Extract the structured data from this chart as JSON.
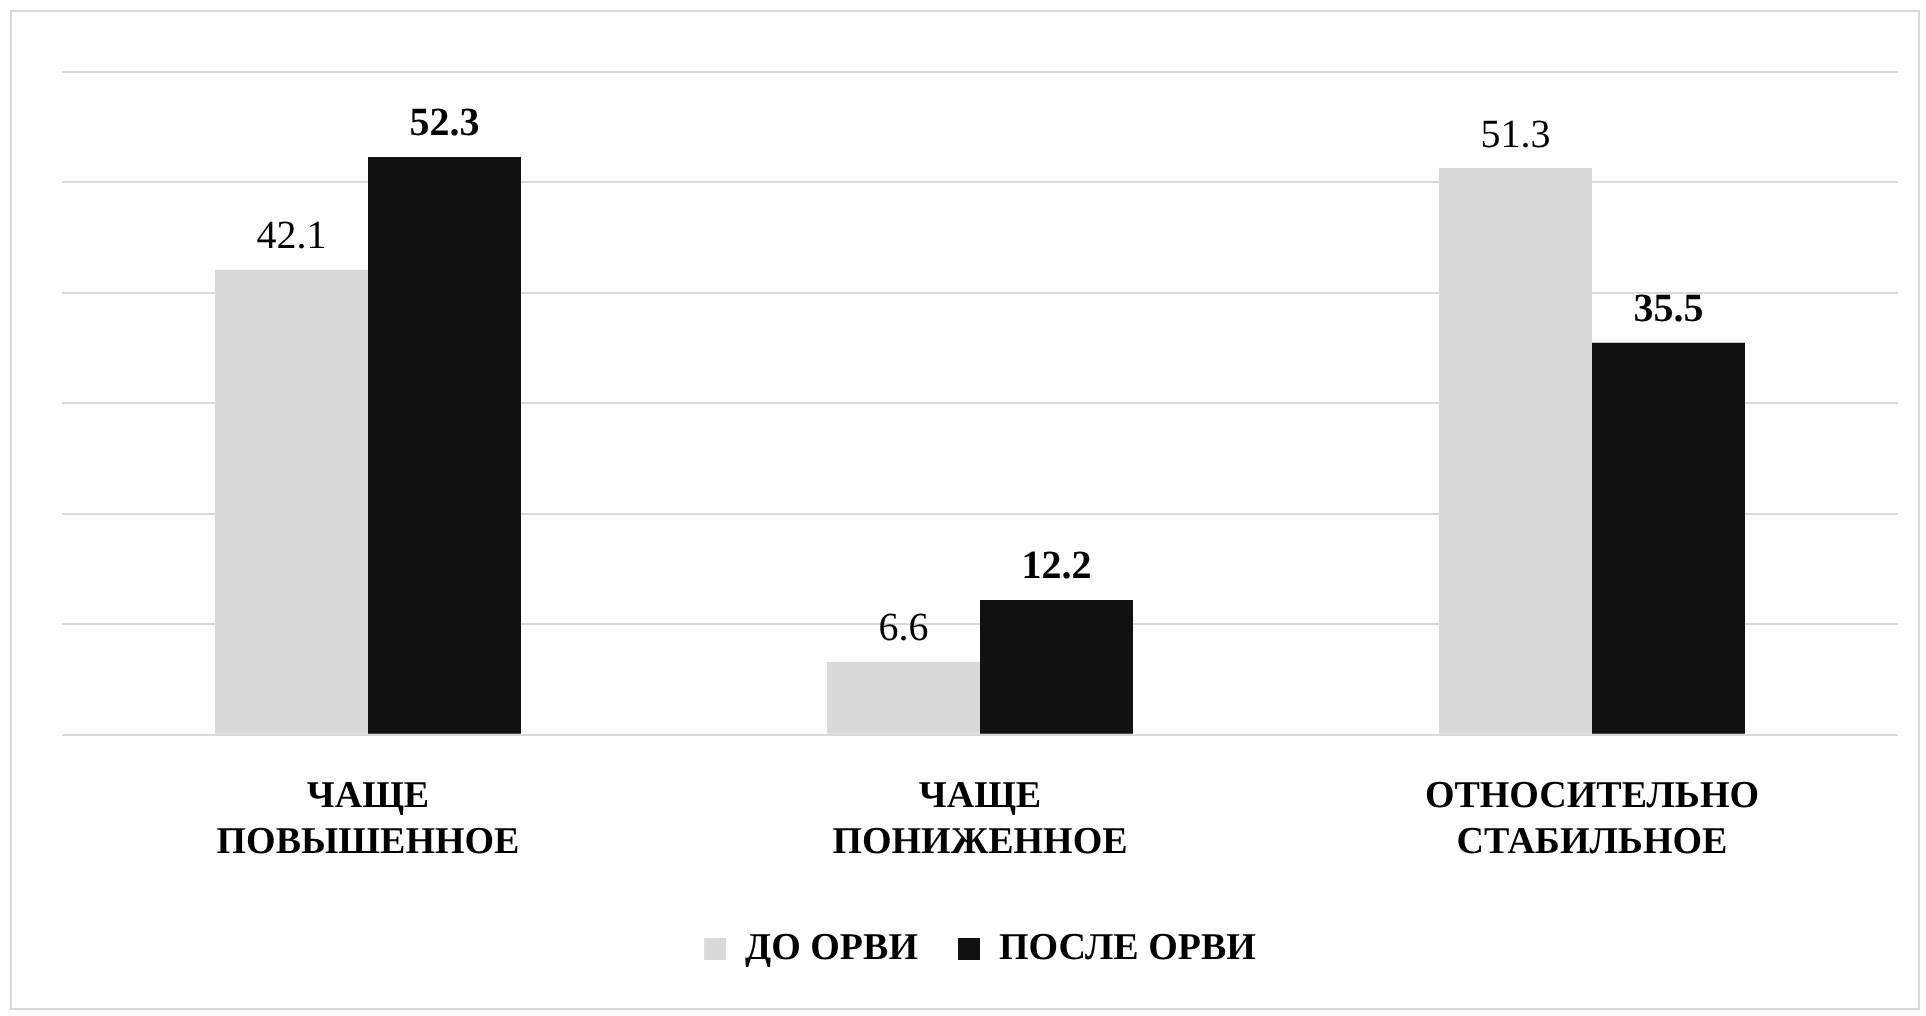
{
  "chart_data": {
    "type": "bar",
    "categories": [
      "ЧАЩЕ ПОВЫШЕННОЕ",
      "ЧАЩЕ ПОНИЖЕННОЕ",
      "ОТНОСИТЕЛЬНО СТАБИЛЬНОЕ"
    ],
    "series": [
      {
        "name": "ДО ОРВИ",
        "color": "#d9d9d9",
        "values": [
          42.1,
          6.6,
          51.3
        ]
      },
      {
        "name": "ПОСЛЕ ОРВИ",
        "color": "#111111",
        "values": [
          52.3,
          12.2,
          35.5
        ]
      }
    ],
    "ylim": [
      0,
      60
    ],
    "yticks": [
      {
        "value": 0,
        "label": null
      },
      {
        "value": 10,
        "label": null
      },
      {
        "value": 20,
        "label": null
      },
      {
        "value": 30,
        "label": null
      },
      {
        "value": 40,
        "label": null
      },
      {
        "value": 50,
        "label": null
      },
      {
        "value": 60,
        "label": null
      }
    ],
    "tick_labels": "x",
    "grid": "y",
    "legend": "bottom",
    "data_labels": true
  }
}
